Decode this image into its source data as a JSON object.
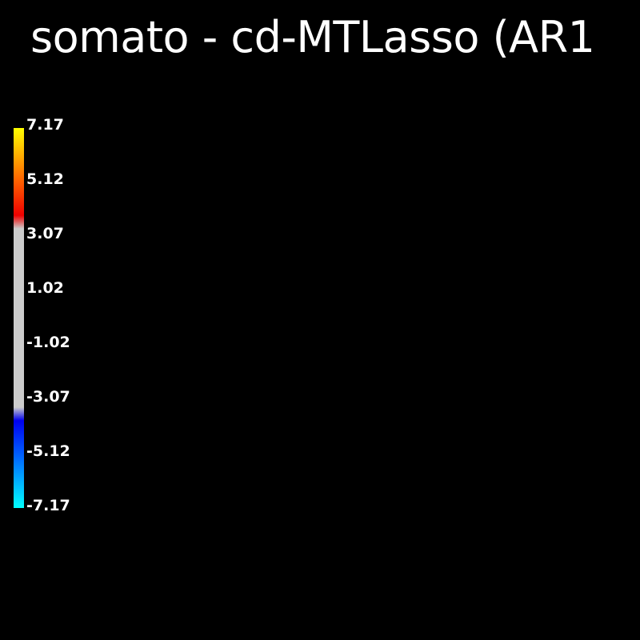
{
  "title": "somato - cd-MTLasso (AR1",
  "colorbar": {
    "range": [
      -7.17,
      7.17
    ],
    "tick_labels": [
      "7.17",
      "5.12",
      "3.07",
      "1.02",
      "-1.02",
      "-3.07",
      "-5.12",
      "-7.17"
    ],
    "colors": {
      "top": "#ffff00",
      "upper_mid": "#ff6000",
      "upper_threshold": "#ee0000",
      "neutral": "#cccccc",
      "lower_threshold": "#0000ee",
      "lower_mid": "#0060ff",
      "bottom": "#00ffff"
    }
  }
}
